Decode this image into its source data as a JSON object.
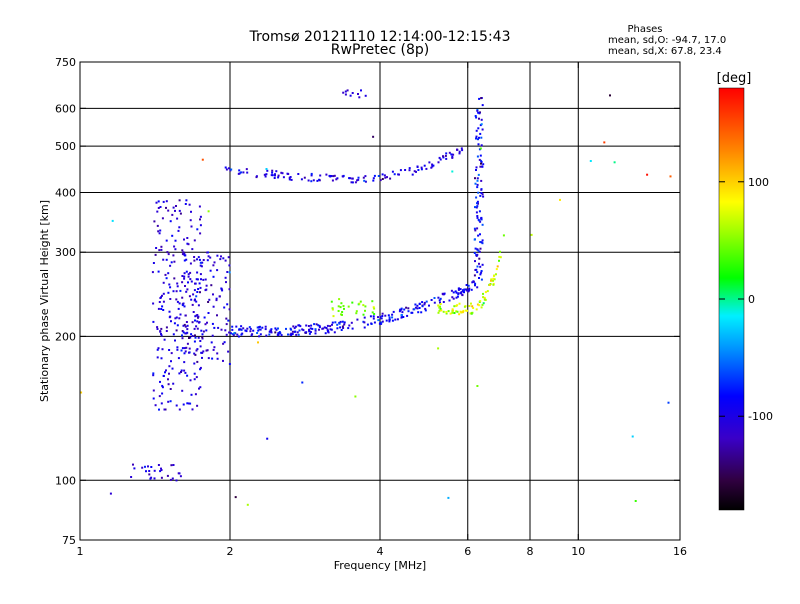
{
  "chart_data": {
    "type": "scatter",
    "title": "Tromsø 20121110 12:14:00-12:15:43",
    "subtitle": "RwPretec (8p)",
    "xlabel": "Frequency [MHz]",
    "ylabel": "Stationary phase Virtual Height [km]",
    "xscale": "log",
    "yscale": "log",
    "xlim": [
      1,
      16
    ],
    "ylim": [
      75,
      750
    ],
    "xticks": [
      {
        "value": 1,
        "label": "1"
      },
      {
        "value": 2,
        "label": "2"
      },
      {
        "value": 4,
        "label": "4"
      },
      {
        "value": 6,
        "label": "6"
      },
      {
        "value": 8,
        "label": "8"
      },
      {
        "value": 10,
        "label": "10"
      },
      {
        "value": 16,
        "label": "16"
      }
    ],
    "yticks": [
      {
        "value": 75,
        "label": "75"
      },
      {
        "value": 100,
        "label": "100"
      },
      {
        "value": 200,
        "label": "200"
      },
      {
        "value": 300,
        "label": "300"
      },
      {
        "value": 400,
        "label": "400"
      },
      {
        "value": 500,
        "label": "500"
      },
      {
        "value": 600,
        "label": "600"
      },
      {
        "value": 750,
        "label": "750"
      }
    ],
    "xgrid": [
      2,
      4,
      6,
      8,
      10
    ],
    "ygrid": [
      100,
      200,
      300,
      400,
      500,
      600
    ],
    "grid": true,
    "phase_info": {
      "heading": "Phases",
      "line1": "mean, sd,O: -94.7, 17.0",
      "line2": "mean, sd,X:  67.8, 23.4"
    },
    "colorbar": {
      "label": "[deg]",
      "range": [
        -180,
        180
      ],
      "ticks": [
        {
          "value": 100,
          "label": "100"
        },
        {
          "value": 0,
          "label": "0"
        },
        {
          "value": -100,
          "label": "-100"
        }
      ]
    },
    "clusters": [
      {
        "id": "e_layer_low",
        "n": 28,
        "x_range": [
          1.25,
          1.6
        ],
        "y_range": [
          99,
          108
        ],
        "phase_mean": -110,
        "phase_sd": 12
      },
      {
        "id": "spread_column_1",
        "n": 230,
        "x_range": [
          1.4,
          1.75
        ],
        "y_range": [
          140,
          390
        ],
        "phase_mean": -105,
        "phase_sd": 15
      },
      {
        "id": "spread_column_2",
        "n": 150,
        "x_range": [
          1.6,
          2.0
        ],
        "y_range": [
          175,
          300
        ],
        "phase_mean": -105,
        "phase_sd": 15
      },
      {
        "id": "f2_o_trace_floor",
        "n": 260,
        "x_range": [
          2.0,
          6.3
        ],
        "y_range": [
          203,
          260
        ],
        "phase_mean": -95,
        "phase_sd": 17
      },
      {
        "id": "f2_o_trace_cusp",
        "n": 110,
        "x_range": [
          6.2,
          6.5
        ],
        "y_range": [
          250,
          640
        ],
        "phase_mean": -90,
        "phase_sd": 20
      },
      {
        "id": "f2_x_trace",
        "n": 80,
        "x_range": [
          5.2,
          7.1
        ],
        "y_range": [
          225,
          330
        ],
        "phase_mean": 67.8,
        "phase_sd": 23.4
      },
      {
        "id": "upper_trace",
        "n": 130,
        "x_range": [
          1.95,
          6.0
        ],
        "y_range": [
          415,
          530
        ],
        "phase_mean": -100,
        "phase_sd": 15
      },
      {
        "id": "green_patch",
        "n": 30,
        "x_range": [
          3.2,
          3.9
        ],
        "y_range": [
          220,
          240
        ],
        "phase_mean": 45,
        "phase_sd": 15
      },
      {
        "id": "top_fragment",
        "n": 10,
        "x_range": [
          3.3,
          3.75
        ],
        "y_range": [
          630,
          655
        ],
        "phase_mean": -110,
        "phase_sd": 10
      },
      {
        "id": "scattered_noise",
        "n": 30,
        "x_range": [
          1.0,
          16.0
        ],
        "y_range": [
          80,
          700
        ],
        "phase_mean": 0,
        "phase_sd": 110
      }
    ]
  }
}
